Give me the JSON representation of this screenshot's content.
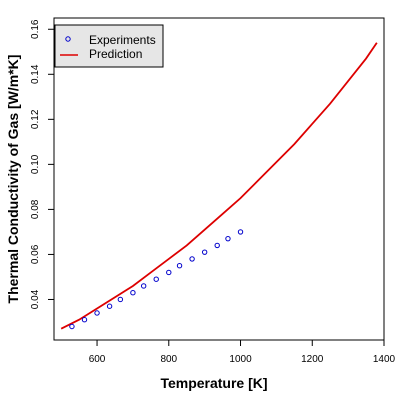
{
  "chart_data": {
    "type": "line",
    "title": "",
    "xlabel": "Temperature [K]",
    "ylabel": "Thermal Conductivity of Gas [W/m*K]",
    "xlim": [
      480,
      1400
    ],
    "ylim": [
      0.022,
      0.165
    ],
    "x_ticks": [
      600,
      800,
      1000,
      1200,
      1400
    ],
    "x_tick_labels": [
      "600",
      "800",
      "1000",
      "1200",
      "1400"
    ],
    "y_ticks": [
      0.04,
      0.06,
      0.08,
      0.1,
      0.12,
      0.14,
      0.16
    ],
    "y_tick_labels": [
      "0.04",
      "0.06",
      "0.08",
      "0.10",
      "0.12",
      "0.14",
      "0.16"
    ],
    "grid": false,
    "legend_position": "top-left",
    "colors": {
      "experiments": "#0000cc",
      "prediction": "#dd0000"
    },
    "series": [
      {
        "name": "Experiments",
        "kind": "scatter",
        "marker": "o",
        "x": [
          530,
          565,
          600,
          635,
          665,
          700,
          730,
          765,
          800,
          830,
          865,
          900,
          935,
          965,
          1000
        ],
        "y": [
          0.028,
          0.031,
          0.034,
          0.037,
          0.04,
          0.043,
          0.046,
          0.049,
          0.052,
          0.055,
          0.058,
          0.061,
          0.064,
          0.067,
          0.07
        ]
      },
      {
        "name": "Prediction",
        "kind": "line",
        "x": [
          500,
          550,
          600,
          650,
          700,
          750,
          800,
          850,
          900,
          950,
          1000,
          1050,
          1100,
          1150,
          1200,
          1250,
          1300,
          1350,
          1380
        ],
        "y": [
          0.027,
          0.031,
          0.036,
          0.041,
          0.046,
          0.052,
          0.058,
          0.064,
          0.071,
          0.078,
          0.085,
          0.093,
          0.101,
          0.109,
          0.118,
          0.127,
          0.137,
          0.147,
          0.154
        ]
      }
    ]
  }
}
